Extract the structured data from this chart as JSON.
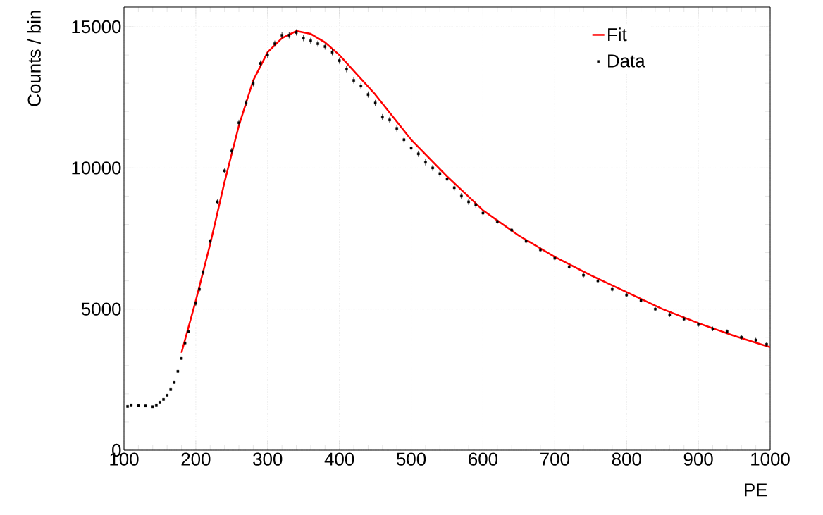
{
  "chart_data": {
    "type": "scatter",
    "xlabel": "PE",
    "ylabel": "Counts / bin",
    "xlim": [
      100,
      1000
    ],
    "ylim": [
      0,
      15700
    ],
    "xticks": [
      100,
      200,
      300,
      400,
      500,
      600,
      700,
      800,
      900,
      1000
    ],
    "yticks": [
      0,
      5000,
      10000,
      15000
    ],
    "grid": true,
    "legend": "top right",
    "series": [
      {
        "name": "Fit",
        "type": "line",
        "color": "#ff0000",
        "marker": "none",
        "line_style": "solid",
        "x": [
          180,
          200,
          220,
          240,
          260,
          280,
          300,
          320,
          340,
          360,
          380,
          400,
          450,
          500,
          550,
          600,
          650,
          700,
          750,
          800,
          850,
          900,
          950,
          1000
        ],
        "values": [
          3450,
          5300,
          7300,
          9500,
          11500,
          13100,
          14100,
          14600,
          14850,
          14750,
          14450,
          14000,
          12600,
          11000,
          9700,
          8500,
          7600,
          6850,
          6200,
          5600,
          5000,
          4500,
          4050,
          3650
        ]
      },
      {
        "name": "Data",
        "color": "#000000",
        "marker": "square",
        "x": [
          105,
          110,
          120,
          130,
          140,
          145,
          150,
          155,
          160,
          165,
          170,
          175,
          180,
          185,
          190,
          200,
          205,
          210,
          220,
          230,
          240,
          250,
          260,
          270,
          280,
          290,
          300,
          310,
          320,
          330,
          340,
          350,
          360,
          370,
          380,
          390,
          400,
          410,
          420,
          430,
          440,
          450,
          460,
          470,
          480,
          490,
          500,
          510,
          520,
          530,
          540,
          550,
          560,
          570,
          580,
          590,
          600,
          620,
          640,
          660,
          680,
          700,
          720,
          740,
          760,
          780,
          800,
          820,
          840,
          860,
          880,
          900,
          920,
          940,
          960,
          980,
          995
        ],
        "values": [
          1550,
          1600,
          1580,
          1570,
          1540,
          1600,
          1700,
          1800,
          1950,
          2150,
          2400,
          2800,
          3250,
          3800,
          4200,
          5200,
          5700,
          6300,
          7400,
          8800,
          9900,
          10600,
          11600,
          12300,
          13000,
          13700,
          14000,
          14400,
          14700,
          14700,
          14800,
          14600,
          14500,
          14400,
          14300,
          14100,
          13800,
          13500,
          13100,
          12900,
          12600,
          12300,
          11800,
          11700,
          11400,
          11000,
          10700,
          10500,
          10200,
          10000,
          9800,
          9600,
          9300,
          9000,
          8800,
          8700,
          8400,
          8100,
          7800,
          7400,
          7100,
          6800,
          6500,
          6200,
          6000,
          5700,
          5500,
          5300,
          5000,
          4800,
          4650,
          4450,
          4300,
          4200,
          4000,
          3900,
          3750
        ],
        "errors": [
          40,
          40,
          40,
          40,
          40,
          40,
          40,
          40,
          40,
          40,
          40,
          40,
          40,
          40,
          40,
          80,
          80,
          80,
          80,
          80,
          80,
          110,
          110,
          110,
          110,
          110,
          110,
          110,
          110,
          110,
          110,
          110,
          110,
          110,
          110,
          110,
          110,
          110,
          110,
          110,
          110,
          110,
          110,
          110,
          110,
          110,
          110,
          110,
          110,
          110,
          110,
          110,
          110,
          110,
          110,
          110,
          110,
          80,
          80,
          80,
          80,
          80,
          80,
          80,
          80,
          80,
          80,
          80,
          80,
          80,
          80,
          80,
          80,
          80,
          80,
          80,
          80
        ]
      }
    ]
  }
}
